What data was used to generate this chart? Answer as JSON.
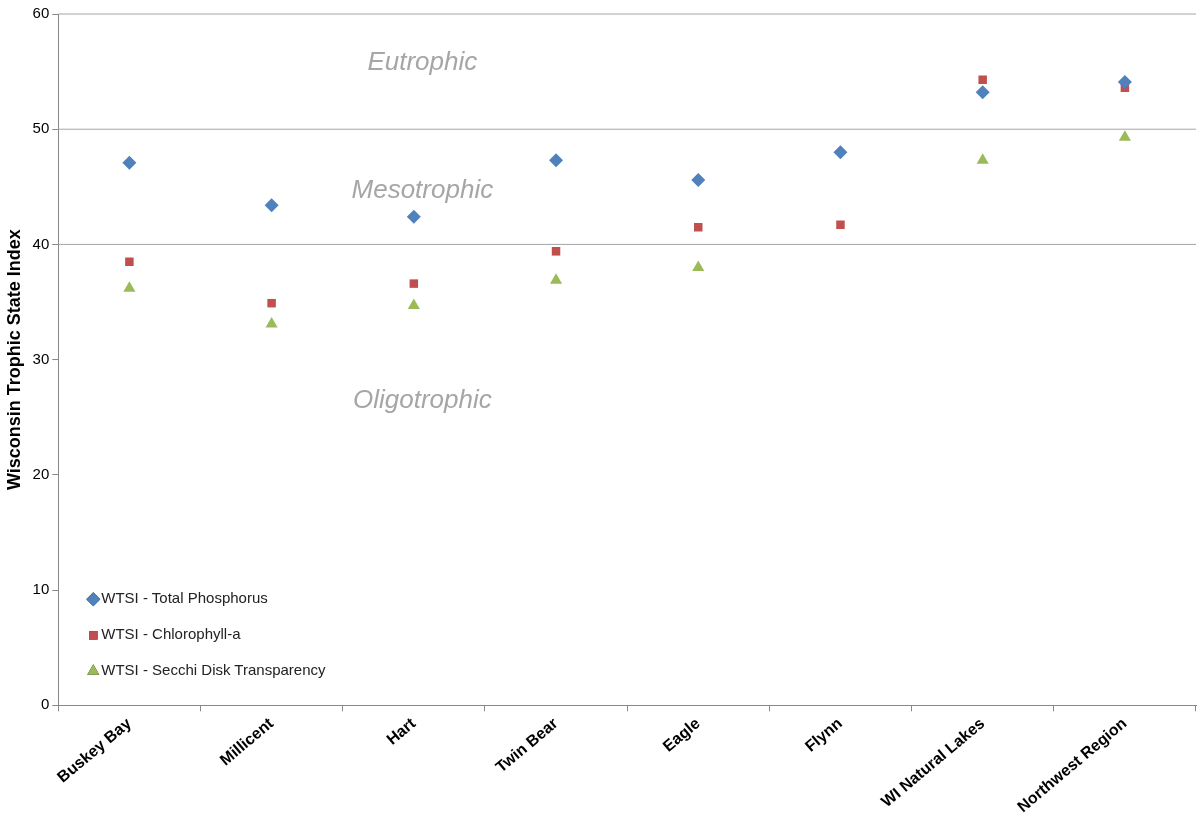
{
  "chart_data": {
    "type": "scatter",
    "ylabel": "Wisconsin Trophic State Index",
    "categories": [
      "Buskey Bay",
      "Millicent",
      "Hart",
      "Twin Bear",
      "Eagle",
      "Flynn",
      "WI Natural Lakes",
      "Northwest Region"
    ],
    "series": [
      {
        "name": "WTSI - Total Phosphorus",
        "color": "#4f81bd",
        "marker": "diamond",
        "values": [
          47.1,
          43.4,
          42.4,
          47.3,
          45.6,
          48.0,
          53.2,
          54.1
        ]
      },
      {
        "name": "WTSI - Chlorophyll-a",
        "color": "#c0504d",
        "marker": "square",
        "values": [
          38.5,
          34.9,
          36.6,
          39.4,
          41.5,
          41.7,
          54.3,
          53.6
        ]
      },
      {
        "name": "WTSI - Secchi Disk Transparency",
        "color": "#9bbb59",
        "marker": "triangle",
        "values": [
          36.2,
          33.1,
          34.7,
          36.9,
          38.0,
          null,
          47.3,
          49.3
        ]
      }
    ],
    "ylim": [
      0,
      60
    ],
    "yticks": [
      0,
      10,
      20,
      30,
      40,
      50,
      60
    ],
    "grid": false,
    "legend": "bottom left",
    "ref_lines": [
      {
        "axis": "y",
        "value": 40,
        "color": "#a6a6a6"
      },
      {
        "axis": "y",
        "value": 50,
        "color": "#a6a6a6"
      }
    ],
    "annotations": [
      "Eutrophic",
      "Mesotrophic",
      "Oligotrophic"
    ]
  }
}
